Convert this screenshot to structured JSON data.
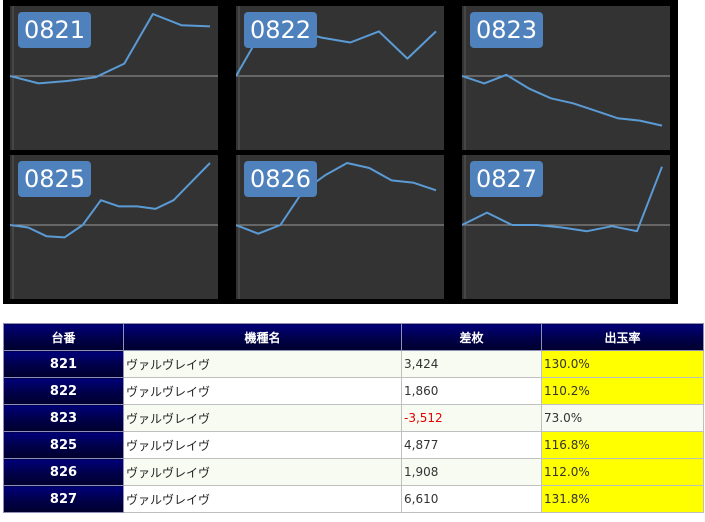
{
  "charts": [
    {
      "label": "0821",
      "points": [
        [
          0,
          0
        ],
        [
          1,
          -0.12
        ],
        [
          2,
          -0.08
        ],
        [
          3,
          -0.02
        ],
        [
          4,
          0.2
        ],
        [
          5,
          1.0
        ],
        [
          6,
          0.82
        ],
        [
          7,
          0.8
        ]
      ]
    },
    {
      "label": "0822",
      "points": [
        [
          0,
          0
        ],
        [
          1,
          0.8
        ],
        [
          2,
          0.74
        ],
        [
          3,
          0.62
        ],
        [
          4,
          0.54
        ],
        [
          5,
          0.72
        ],
        [
          6,
          0.28
        ],
        [
          7,
          0.72
        ]
      ]
    },
    {
      "label": "0823",
      "points": [
        [
          0,
          0
        ],
        [
          1,
          -0.12
        ],
        [
          2,
          0.02
        ],
        [
          3,
          -0.2
        ],
        [
          4,
          -0.36
        ],
        [
          5,
          -0.44
        ],
        [
          6,
          -0.56
        ],
        [
          7,
          -0.68
        ],
        [
          8,
          -0.72
        ],
        [
          9,
          -0.8
        ]
      ]
    },
    {
      "label": "0825",
      "points": [
        [
          0,
          0
        ],
        [
          1,
          -0.04
        ],
        [
          2,
          -0.18
        ],
        [
          3,
          -0.2
        ],
        [
          4,
          0.0
        ],
        [
          5,
          0.4
        ],
        [
          6,
          0.3
        ],
        [
          7,
          0.3
        ],
        [
          8,
          0.26
        ],
        [
          9,
          0.4
        ],
        [
          10,
          0.7
        ],
        [
          11,
          1.0
        ]
      ]
    },
    {
      "label": "0826",
      "points": [
        [
          0,
          0
        ],
        [
          1,
          -0.14
        ],
        [
          2,
          0.0
        ],
        [
          3,
          0.54
        ],
        [
          4,
          0.8
        ],
        [
          5,
          1.0
        ],
        [
          6,
          0.92
        ],
        [
          7,
          0.72
        ],
        [
          8,
          0.68
        ],
        [
          9,
          0.56
        ]
      ]
    },
    {
      "label": "0827",
      "points": [
        [
          0,
          0
        ],
        [
          1,
          0.2
        ],
        [
          2,
          0.0
        ],
        [
          3,
          0.0
        ],
        [
          4,
          -0.04
        ],
        [
          5,
          -0.1
        ],
        [
          6,
          -0.02
        ],
        [
          7,
          -0.1
        ],
        [
          8,
          0.94
        ]
      ]
    }
  ],
  "table": {
    "headers": {
      "unit": "台番",
      "model": "機種名",
      "diff": "差枚",
      "rate": "出玉率"
    },
    "rows": [
      {
        "unit": "821",
        "model": "ヴァルヴレイヴ",
        "diff": "3,424",
        "rate": "130.0%",
        "negative": false,
        "highlight": true
      },
      {
        "unit": "822",
        "model": "ヴァルヴレイヴ",
        "diff": "1,860",
        "rate": "110.2%",
        "negative": false,
        "highlight": true
      },
      {
        "unit": "823",
        "model": "ヴァルヴレイヴ",
        "diff": "-3,512",
        "rate": "73.0%",
        "negative": true,
        "highlight": false
      },
      {
        "unit": "825",
        "model": "ヴァルヴレイヴ",
        "diff": "4,877",
        "rate": "116.8%",
        "negative": false,
        "highlight": true
      },
      {
        "unit": "826",
        "model": "ヴァルヴレイヴ",
        "diff": "1,908",
        "rate": "112.0%",
        "negative": false,
        "highlight": true
      },
      {
        "unit": "827",
        "model": "ヴァルヴレイヴ",
        "diff": "6,610",
        "rate": "131.8%",
        "negative": false,
        "highlight": true
      }
    ]
  },
  "colors": {
    "line": "#5b9bd5",
    "baseline": "#9a9a9a",
    "highlight": "#ffff00",
    "negative": "#e00000",
    "header": "#000048"
  }
}
